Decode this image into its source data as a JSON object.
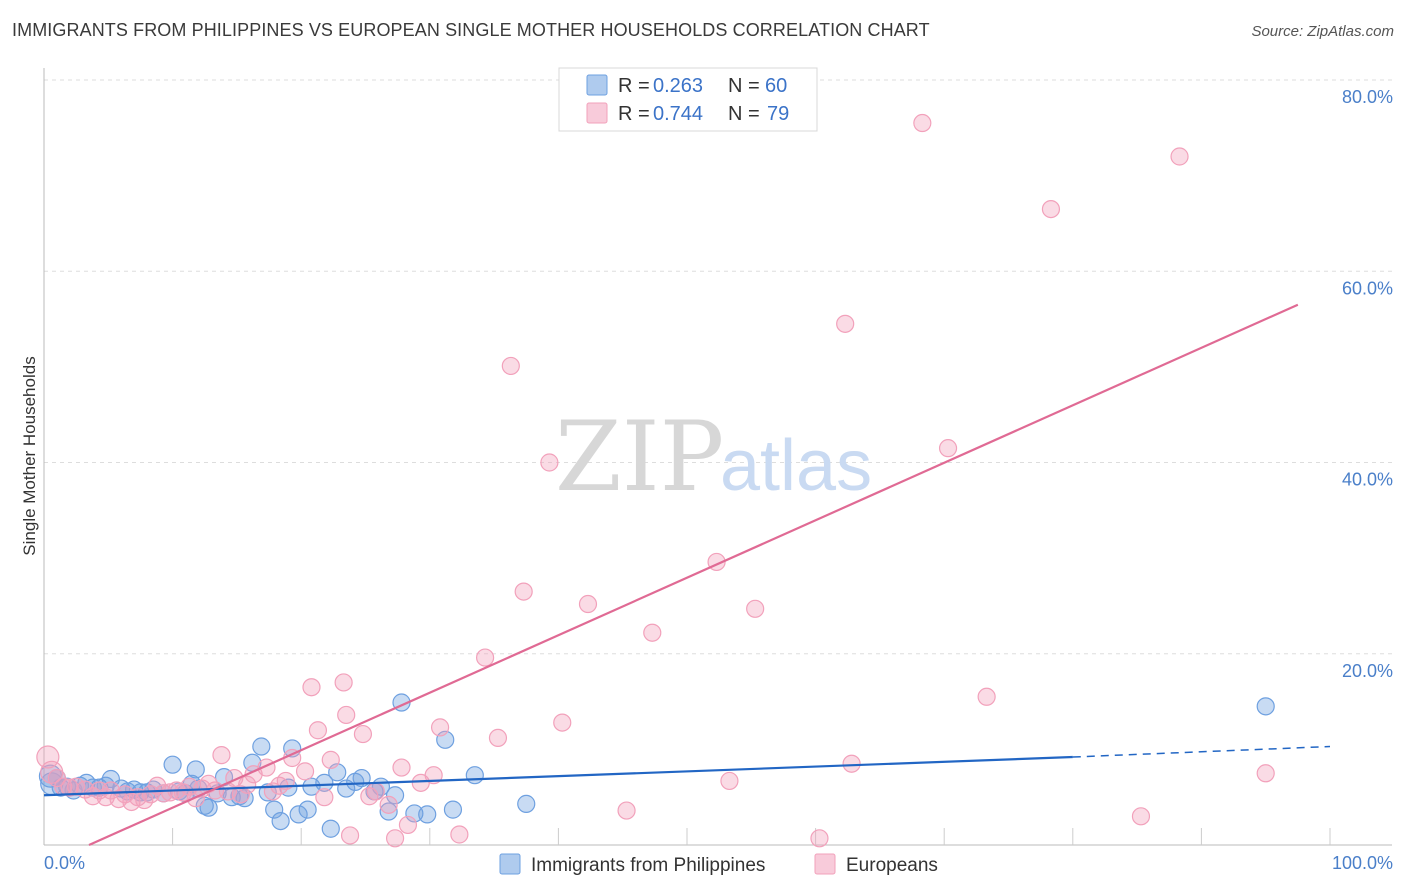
{
  "chart_data": {
    "type": "scatter",
    "title": "IMMIGRANTS FROM PHILIPPINES VS EUROPEAN SINGLE MOTHER HOUSEHOLDS CORRELATION CHART",
    "source": "Source: ZipAtlas.com",
    "xlabel": "",
    "ylabel": "Single Mother Households",
    "xlim": [
      0,
      100
    ],
    "ylim": [
      0,
      80
    ],
    "x_ticks": [
      {
        "value": 0,
        "label": "0.0%"
      },
      {
        "value": 100,
        "label": "100.0%"
      }
    ],
    "y_ticks": [
      {
        "value": 20,
        "label": "20.0%"
      },
      {
        "value": 40,
        "label": "40.0%"
      },
      {
        "value": 60,
        "label": "60.0%"
      },
      {
        "value": 80,
        "label": "80.0%"
      }
    ],
    "grid": true,
    "watermark": {
      "part1": "ZIP",
      "part2": "atlas"
    },
    "legend_top": [
      {
        "r_label": "R =",
        "r_value": "0.263",
        "n_label": "N =",
        "n_value": "60"
      },
      {
        "r_label": "R =",
        "r_value": "0.744",
        "n_label": "N =",
        "n_value": "79"
      }
    ],
    "series": [
      {
        "name": "Immigrants from Philippines",
        "color": "#6ea0e0",
        "line_color": "#2266c4",
        "trend": {
          "x1": 0,
          "y1": 5.2,
          "x2": 80,
          "y2": 9.2,
          "dash_x2": 100,
          "dash_y2": 10.3
        },
        "points": [
          [
            0.5,
            7.2
          ],
          [
            0.6,
            6.4
          ],
          [
            1.0,
            7.0
          ],
          [
            1.3,
            6.0
          ],
          [
            1.8,
            6.1
          ],
          [
            2.3,
            5.7
          ],
          [
            2.8,
            6.2
          ],
          [
            3.3,
            6.5
          ],
          [
            3.8,
            6.0
          ],
          [
            4.3,
            6.0
          ],
          [
            4.8,
            6.2
          ],
          [
            5.2,
            6.9
          ],
          [
            6.0,
            5.9
          ],
          [
            6.5,
            5.6
          ],
          [
            7.0,
            5.8
          ],
          [
            7.5,
            5.5
          ],
          [
            8.0,
            5.5
          ],
          [
            8.5,
            5.8
          ],
          [
            9.3,
            5.4
          ],
          [
            10.0,
            8.4
          ],
          [
            10.5,
            5.6
          ],
          [
            11.0,
            5.4
          ],
          [
            11.5,
            6.4
          ],
          [
            12.0,
            5.9
          ],
          [
            11.8,
            7.9
          ],
          [
            12.5,
            4.1
          ],
          [
            12.8,
            3.9
          ],
          [
            13.5,
            5.4
          ],
          [
            14.0,
            7.1
          ],
          [
            14.6,
            5.0
          ],
          [
            15.2,
            5.1
          ],
          [
            15.6,
            4.9
          ],
          [
            16.2,
            8.6
          ],
          [
            16.9,
            10.3
          ],
          [
            17.4,
            5.5
          ],
          [
            17.9,
            3.7
          ],
          [
            18.4,
            2.5
          ],
          [
            19.0,
            6.0
          ],
          [
            19.3,
            10.1
          ],
          [
            19.8,
            3.2
          ],
          [
            20.5,
            3.7
          ],
          [
            20.8,
            6.1
          ],
          [
            21.8,
            6.5
          ],
          [
            22.3,
            1.7
          ],
          [
            22.8,
            7.6
          ],
          [
            23.5,
            5.9
          ],
          [
            24.2,
            6.6
          ],
          [
            24.7,
            7.0
          ],
          [
            25.7,
            5.6
          ],
          [
            26.2,
            6.1
          ],
          [
            26.8,
            3.5
          ],
          [
            27.3,
            5.2
          ],
          [
            27.8,
            14.9
          ],
          [
            28.8,
            3.3
          ],
          [
            29.8,
            3.2
          ],
          [
            31.2,
            11.0
          ],
          [
            31.8,
            3.7
          ],
          [
            33.5,
            7.3
          ],
          [
            37.5,
            4.3
          ],
          [
            95.0,
            14.5
          ]
        ]
      },
      {
        "name": "Europeans",
        "color": "#f2a1bb",
        "line_color": "#e06a94",
        "trend": {
          "x1": 3.5,
          "y1": 0,
          "x2": 97.5,
          "y2": 56.5
        },
        "points": [
          [
            0.3,
            9.2
          ],
          [
            0.6,
            7.6
          ],
          [
            1.0,
            7.0
          ],
          [
            1.5,
            6.1
          ],
          [
            2.0,
            6.0
          ],
          [
            2.5,
            6.1
          ],
          [
            3.2,
            5.8
          ],
          [
            3.8,
            5.1
          ],
          [
            4.3,
            5.7
          ],
          [
            4.8,
            5.0
          ],
          [
            5.2,
            5.7
          ],
          [
            5.8,
            4.8
          ],
          [
            6.3,
            5.3
          ],
          [
            6.8,
            4.5
          ],
          [
            7.3,
            5.0
          ],
          [
            7.8,
            4.7
          ],
          [
            8.3,
            5.3
          ],
          [
            8.8,
            6.2
          ],
          [
            9.3,
            5.4
          ],
          [
            9.8,
            5.5
          ],
          [
            10.3,
            5.7
          ],
          [
            10.8,
            5.5
          ],
          [
            11.3,
            6.1
          ],
          [
            11.8,
            4.9
          ],
          [
            12.3,
            5.9
          ],
          [
            12.8,
            6.4
          ],
          [
            13.3,
            5.7
          ],
          [
            13.8,
            9.4
          ],
          [
            14.3,
            5.6
          ],
          [
            14.8,
            7.0
          ],
          [
            15.3,
            5.3
          ],
          [
            15.8,
            6.3
          ],
          [
            16.3,
            7.4
          ],
          [
            17.3,
            8.1
          ],
          [
            17.8,
            5.6
          ],
          [
            18.3,
            6.2
          ],
          [
            18.8,
            6.7
          ],
          [
            19.3,
            9.1
          ],
          [
            20.3,
            7.7
          ],
          [
            20.8,
            16.5
          ],
          [
            21.3,
            12.0
          ],
          [
            21.8,
            5.0
          ],
          [
            22.3,
            8.9
          ],
          [
            23.3,
            17.0
          ],
          [
            23.5,
            13.6
          ],
          [
            23.8,
            1.0
          ],
          [
            24.8,
            11.6
          ],
          [
            25.3,
            5.1
          ],
          [
            25.8,
            5.6
          ],
          [
            26.8,
            4.2
          ],
          [
            27.8,
            8.1
          ],
          [
            27.3,
            0.7
          ],
          [
            28.3,
            2.1
          ],
          [
            29.3,
            6.5
          ],
          [
            30.3,
            7.3
          ],
          [
            30.8,
            12.3
          ],
          [
            32.3,
            1.1
          ],
          [
            34.3,
            19.6
          ],
          [
            35.3,
            11.2
          ],
          [
            36.3,
            50.1
          ],
          [
            37.3,
            26.5
          ],
          [
            39.3,
            40.0
          ],
          [
            40.3,
            12.8
          ],
          [
            42.3,
            25.2
          ],
          [
            45.3,
            3.6
          ],
          [
            47.3,
            22.2
          ],
          [
            52.3,
            29.6
          ],
          [
            53.3,
            6.7
          ],
          [
            55.3,
            24.7
          ],
          [
            60.3,
            0.7
          ],
          [
            62.3,
            54.5
          ],
          [
            62.8,
            8.5
          ],
          [
            68.3,
            75.5
          ],
          [
            70.3,
            41.5
          ],
          [
            73.3,
            15.5
          ],
          [
            78.3,
            66.5
          ],
          [
            85.3,
            3.0
          ],
          [
            88.3,
            72.0
          ],
          [
            95.0,
            7.5
          ]
        ]
      }
    ]
  }
}
